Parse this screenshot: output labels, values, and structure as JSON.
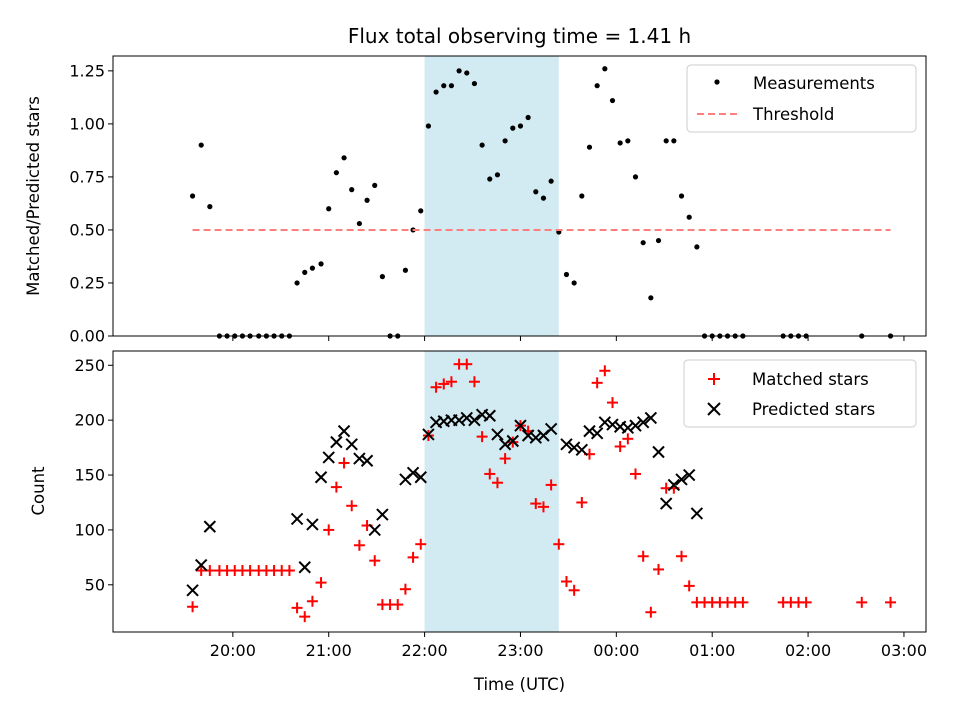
{
  "chart_data": [
    {
      "type": "scatter",
      "title": "Flux total observing time = 1.41 h",
      "xlabel": "",
      "ylabel": "Matched/Predicted stars",
      "ylim": [
        0,
        1.32
      ],
      "yticks": [
        "0.00",
        "0.25",
        "0.50",
        "0.75",
        "1.00",
        "1.25"
      ],
      "ytick_values": [
        0,
        0.25,
        0.5,
        0.75,
        1.0,
        1.25
      ],
      "x_unit": "hours since 19:00 UTC",
      "xlim": [
        -0.25,
        8.23
      ],
      "highlight_span": {
        "x_start": 3.0,
        "x_end": 4.4,
        "color": "#add8e6"
      },
      "legend": {
        "position": "top-right",
        "entries": [
          "Measurements",
          "Threshold"
        ]
      },
      "series": [
        {
          "name": "Measurements",
          "marker": "dot",
          "color": "#000000",
          "x": [
            0.58,
            0.67,
            0.76,
            0.86,
            0.94,
            1.02,
            1.1,
            1.18,
            1.27,
            1.35,
            1.43,
            1.51,
            1.59,
            1.67,
            1.75,
            1.83,
            1.92,
            2.0,
            2.08,
            2.16,
            2.24,
            2.32,
            2.4,
            2.48,
            2.56,
            2.64,
            2.72,
            2.8,
            2.88,
            2.96,
            3.04,
            3.12,
            3.2,
            3.28,
            3.36,
            3.44,
            3.52,
            3.6,
            3.68,
            3.76,
            3.84,
            3.92,
            4.0,
            4.08,
            4.16,
            4.24,
            4.32,
            4.4,
            4.48,
            4.56,
            4.64,
            4.72,
            4.8,
            4.88,
            4.96,
            5.04,
            5.12,
            5.2,
            5.28,
            5.36,
            5.44,
            5.52,
            5.6,
            5.68,
            5.76,
            5.84,
            5.92,
            6.0,
            6.08,
            6.16,
            6.24,
            6.32,
            6.74,
            6.82,
            6.9,
            6.98,
            7.56,
            7.86
          ],
          "y": [
            0.66,
            0.9,
            0.61,
            0,
            0,
            0,
            0,
            0,
            0,
            0,
            0,
            0,
            0,
            0.25,
            0.3,
            0.32,
            0.34,
            0.6,
            0.77,
            0.84,
            0.69,
            0.53,
            0.64,
            0.71,
            0.28,
            0,
            0,
            0.31,
            0.5,
            0.59,
            0.99,
            1.15,
            1.18,
            1.18,
            1.25,
            1.24,
            1.19,
            0.9,
            0.74,
            0.76,
            0.92,
            0.98,
            0.99,
            1.03,
            0.68,
            0.65,
            0.73,
            0.49,
            0.29,
            0.25,
            0.66,
            0.89,
            1.18,
            1.26,
            1.11,
            0.91,
            0.92,
            0.75,
            0.44,
            0.18,
            0.45,
            0.92,
            0.92,
            0.66,
            0.56,
            0.42,
            0,
            0,
            0,
            0,
            0,
            0,
            0,
            0,
            0,
            0,
            0,
            0
          ]
        },
        {
          "name": "Threshold",
          "style": "dashed",
          "color": "#ff7f7f",
          "x": [
            0.58,
            7.86
          ],
          "y": [
            0.5,
            0.5
          ]
        }
      ]
    },
    {
      "type": "scatter",
      "title": "",
      "xlabel": "Time (UTC)",
      "ylabel": "Count",
      "ylim": [
        7,
        263
      ],
      "yticks": [
        "50",
        "100",
        "150",
        "200",
        "250"
      ],
      "ytick_values": [
        50,
        100,
        150,
        200,
        250
      ],
      "x_unit": "hours since 19:00 UTC",
      "xlim": [
        -0.25,
        8.23
      ],
      "xticks": [
        "20:00",
        "21:00",
        "22:00",
        "23:00",
        "00:00",
        "01:00",
        "02:00",
        "03:00"
      ],
      "xtick_values": [
        1,
        2,
        3,
        4,
        5,
        6,
        7,
        8
      ],
      "highlight_span": {
        "x_start": 3.0,
        "x_end": 4.4,
        "color": "#add8e6"
      },
      "legend": {
        "position": "top-right",
        "entries": [
          "Matched stars",
          "Predicted stars"
        ]
      },
      "series": [
        {
          "name": "Matched stars",
          "marker": "plus",
          "color": "#ff0000",
          "x": [
            0.58,
            0.67,
            0.76,
            0.86,
            0.94,
            1.02,
            1.1,
            1.18,
            1.27,
            1.35,
            1.43,
            1.51,
            1.59,
            1.67,
            1.75,
            1.83,
            1.92,
            2.0,
            2.08,
            2.16,
            2.24,
            2.32,
            2.4,
            2.48,
            2.56,
            2.64,
            2.72,
            2.8,
            2.88,
            2.96,
            3.04,
            3.12,
            3.2,
            3.28,
            3.36,
            3.44,
            3.52,
            3.6,
            3.68,
            3.76,
            3.84,
            3.92,
            4.0,
            4.08,
            4.16,
            4.24,
            4.32,
            4.4,
            4.48,
            4.56,
            4.64,
            4.72,
            4.8,
            4.88,
            4.96,
            5.04,
            5.12,
            5.2,
            5.28,
            5.36,
            5.44,
            5.52,
            5.6,
            5.68,
            5.76,
            5.84,
            5.92,
            6.0,
            6.08,
            6.16,
            6.24,
            6.32,
            6.74,
            6.82,
            6.9,
            6.98,
            7.56,
            7.86
          ],
          "y": [
            30,
            63,
            63,
            63,
            63,
            63,
            63,
            63,
            63,
            63,
            63,
            63,
            63,
            29,
            21,
            35,
            52,
            100,
            139,
            161,
            122,
            86,
            104,
            72,
            32,
            32,
            32,
            46,
            75,
            87,
            186,
            230,
            233,
            235,
            251,
            251,
            235,
            185,
            151,
            143,
            165,
            180,
            195,
            190,
            124,
            121,
            141,
            87,
            53,
            45,
            125,
            169,
            234,
            245,
            216,
            176,
            183,
            151,
            76,
            25,
            64,
            138,
            138,
            76,
            49,
            34,
            34,
            34,
            34,
            34,
            34,
            34,
            34,
            34,
            34,
            34,
            34,
            34
          ]
        },
        {
          "name": "Predicted stars",
          "marker": "x",
          "color": "#000000",
          "x": [
            0.58,
            0.67,
            0.76,
            1.67,
            1.75,
            1.83,
            1.92,
            2.0,
            2.08,
            2.16,
            2.24,
            2.32,
            2.4,
            2.48,
            2.56,
            2.8,
            2.88,
            2.96,
            3.04,
            3.12,
            3.2,
            3.28,
            3.36,
            3.44,
            3.52,
            3.6,
            3.68,
            3.76,
            3.84,
            3.92,
            4.0,
            4.08,
            4.16,
            4.24,
            4.32,
            4.48,
            4.56,
            4.64,
            4.72,
            4.8,
            4.88,
            4.96,
            5.04,
            5.12,
            5.2,
            5.28,
            5.36,
            5.44,
            5.52,
            5.6,
            5.68,
            5.76,
            5.84
          ],
          "y": [
            45,
            68,
            103,
            110,
            66,
            105,
            148,
            166,
            180,
            190,
            178,
            165,
            163,
            100,
            114,
            146,
            152,
            148,
            187,
            198,
            199,
            200,
            200,
            202,
            200,
            205,
            204,
            187,
            178,
            181,
            195,
            186,
            184,
            186,
            192,
            178,
            175,
            173,
            190,
            188,
            198,
            196,
            194,
            193,
            195,
            198,
            202,
            171,
            124,
            141,
            146,
            150,
            115
          ]
        }
      ]
    }
  ]
}
